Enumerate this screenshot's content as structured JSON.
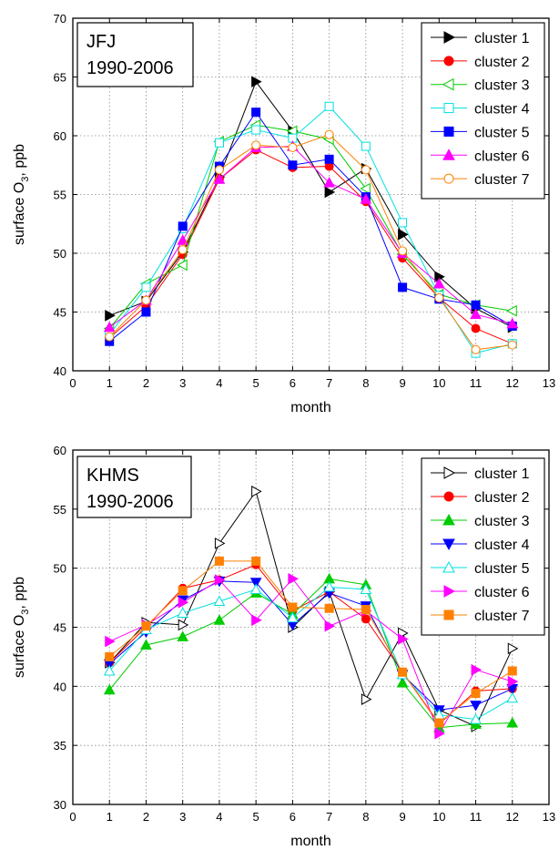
{
  "chart_data": [
    {
      "type": "line",
      "station_label": "JFJ",
      "period_label": "1990-2006",
      "xlabel": "month",
      "ylabel_main": "surface O",
      "ylabel_sub": "3",
      "ylabel_unit": ", ppb",
      "xlim": [
        0,
        13
      ],
      "ylim": [
        40,
        70
      ],
      "xticks": [
        0,
        1,
        2,
        3,
        4,
        5,
        6,
        7,
        8,
        9,
        10,
        11,
        12,
        13
      ],
      "yticks": [
        40,
        45,
        50,
        55,
        60,
        65,
        70
      ],
      "grid": true,
      "legend_position": "top-right",
      "x": [
        1,
        2,
        3,
        4,
        5,
        6,
        7,
        8,
        9,
        10,
        11,
        12
      ],
      "series": [
        {
          "name": "cluster 1",
          "color": "#000000",
          "marker": "triangle-right",
          "filled": true,
          "values": [
            44.7,
            45.9,
            50.1,
            56.5,
            64.6,
            60.4,
            55.2,
            57.2,
            51.6,
            48.0,
            45.3,
            43.7
          ]
        },
        {
          "name": "cluster 2",
          "color": "#ff0000",
          "marker": "circle",
          "filled": true,
          "values": [
            42.8,
            45.5,
            49.9,
            56.3,
            58.8,
            57.3,
            57.4,
            54.4,
            49.6,
            46.2,
            43.6,
            42.3
          ]
        },
        {
          "name": "cluster 3",
          "color": "#00cc00",
          "marker": "triangle-left",
          "filled": false,
          "values": [
            43.6,
            47.4,
            49.0,
            59.5,
            60.9,
            60.4,
            59.7,
            55.5,
            49.9,
            46.5,
            45.6,
            45.1
          ]
        },
        {
          "name": "cluster 4",
          "color": "#00e0e0",
          "marker": "square",
          "filled": false,
          "values": [
            43.1,
            47.1,
            52.1,
            59.4,
            60.5,
            59.8,
            62.5,
            59.1,
            52.6,
            46.4,
            41.5,
            42.3
          ]
        },
        {
          "name": "cluster 5",
          "color": "#0000ff",
          "marker": "square",
          "filled": true,
          "values": [
            42.5,
            45.0,
            52.3,
            57.4,
            62.0,
            57.5,
            58.0,
            54.8,
            47.1,
            46.1,
            45.6,
            43.8
          ]
        },
        {
          "name": "cluster 6",
          "color": "#ff00ff",
          "marker": "triangle-up",
          "filled": true,
          "values": [
            43.7,
            46.0,
            51.1,
            56.3,
            59.0,
            59.1,
            56.0,
            54.6,
            50.0,
            47.4,
            44.8,
            44.0
          ]
        },
        {
          "name": "cluster 7",
          "color": "#ff8000",
          "marker": "circle",
          "filled": false,
          "values": [
            42.9,
            46.0,
            50.3,
            57.1,
            59.2,
            59.0,
            60.1,
            57.1,
            50.2,
            46.2,
            41.8,
            42.2
          ]
        }
      ]
    },
    {
      "type": "line",
      "station_label": "KHMS",
      "period_label": "1990-2006",
      "xlabel": "month",
      "ylabel_main": "surface O",
      "ylabel_sub": "3",
      "ylabel_unit": ", ppb",
      "xlim": [
        0,
        13
      ],
      "ylim": [
        30,
        60
      ],
      "xticks": [
        0,
        1,
        2,
        3,
        4,
        5,
        6,
        7,
        8,
        9,
        10,
        11,
        12,
        13
      ],
      "yticks": [
        30,
        35,
        40,
        45,
        50,
        55,
        60
      ],
      "grid": true,
      "legend_position": "top-right",
      "series": [
        {
          "name": "cluster 1",
          "color": "#000000",
          "marker": "triangle-right",
          "filled": false,
          "x": [
            1,
            2,
            3,
            4,
            5,
            6,
            7,
            8,
            9,
            10,
            11,
            12
          ],
          "values": [
            42.0,
            45.4,
            45.2,
            52.1,
            56.5,
            45.0,
            48.0,
            38.9,
            44.5,
            38.0,
            36.6,
            43.2
          ]
        },
        {
          "name": "cluster 2",
          "color": "#ff0000",
          "marker": "circle",
          "filled": true,
          "x": [
            1,
            2,
            3,
            4,
            5,
            6,
            7,
            8,
            9,
            10,
            11,
            12
          ],
          "values": [
            42.0,
            45.0,
            48.3,
            49.0,
            50.3,
            46.4,
            48.0,
            45.7,
            41.2,
            36.8,
            39.6,
            39.8
          ]
        },
        {
          "name": "cluster 3",
          "color": "#00cc00",
          "marker": "triangle-up",
          "filled": true,
          "x": [
            1,
            2,
            3,
            4,
            5,
            6,
            7,
            8,
            9,
            10,
            11,
            12
          ],
          "values": [
            39.7,
            43.5,
            44.2,
            45.6,
            47.9,
            46.1,
            49.1,
            48.6,
            40.3,
            36.5,
            36.8,
            36.9
          ]
        },
        {
          "name": "cluster 4",
          "color": "#0000ff",
          "marker": "triangle-down",
          "filled": true,
          "x": [
            1,
            2,
            3,
            4,
            5,
            6,
            7,
            8,
            9,
            10,
            11,
            12
          ],
          "values": [
            41.9,
            44.6,
            47.3,
            48.9,
            48.8,
            45.2,
            47.9,
            46.8,
            41.0,
            38.0,
            38.4,
            39.8
          ]
        },
        {
          "name": "cluster 5",
          "color": "#00e0e0",
          "marker": "triangle-up",
          "filled": false,
          "x": [
            1,
            2,
            3,
            4,
            5,
            6,
            7,
            8,
            9,
            10,
            11,
            12
          ],
          "values": [
            41.3,
            44.8,
            46.2,
            47.2,
            48.2,
            45.8,
            48.4,
            48.2,
            41.0,
            37.6,
            37.2,
            39.0
          ]
        },
        {
          "name": "cluster 6",
          "color": "#ff00ff",
          "marker": "triangle-right",
          "filled": true,
          "x": [
            1,
            2,
            3,
            4,
            5,
            6,
            7,
            8,
            9,
            10,
            11,
            12
          ],
          "values": [
            43.8,
            45.2,
            47.1,
            49.0,
            45.6,
            49.1,
            45.1,
            46.4,
            44.0,
            36.0,
            41.4,
            40.4
          ]
        },
        {
          "name": "cluster 7",
          "color": "#ff8000",
          "marker": "square",
          "filled": true,
          "x": [
            1,
            2,
            3,
            4,
            5,
            6,
            7,
            8,
            9,
            10,
            11,
            12
          ],
          "values": [
            42.5,
            45.1,
            48.1,
            50.6,
            50.6,
            46.7,
            46.6,
            46.5,
            41.2,
            36.9,
            39.4,
            41.3
          ]
        }
      ]
    }
  ]
}
